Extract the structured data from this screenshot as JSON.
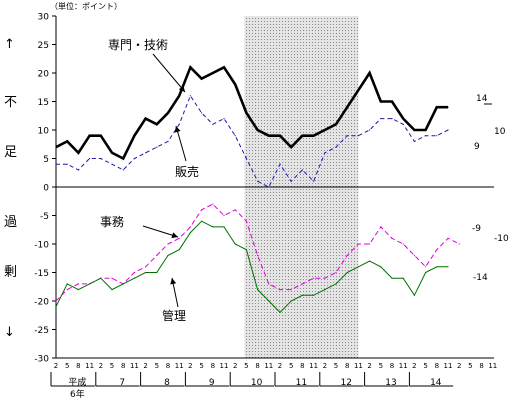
{
  "unit_label": "（単位：ポイント）",
  "side_labels": {
    "up_arrow": "↑",
    "shortage_1": "不",
    "shortage_2": "足",
    "surplus_1": "過",
    "surplus_2": "剰",
    "down_arrow": "↓"
  },
  "chart_data": {
    "type": "line",
    "title": "",
    "ylim": [
      -30,
      30
    ],
    "y_ticks": [
      "30",
      "25",
      "20",
      "15",
      "10",
      "5",
      "0",
      "-5",
      "-10",
      "-15",
      "-20",
      "-25",
      "-30"
    ],
    "x_month_labels": [
      "2",
      "5",
      "8",
      "11",
      "2",
      "5",
      "8",
      "11",
      "2",
      "5",
      "8",
      "11",
      "2",
      "5",
      "8",
      "11",
      "2",
      "5",
      "8",
      "11",
      "2",
      "5",
      "8",
      "11",
      "2",
      "5",
      "8",
      "11",
      "2",
      "5",
      "8",
      "11",
      "2",
      "5",
      "8",
      "11",
      "2",
      "5",
      "8",
      "11"
    ],
    "year_labels": [
      {
        "label": "平成",
        "sub": "6年"
      },
      {
        "label": "7"
      },
      {
        "label": "8"
      },
      {
        "label": "9"
      },
      {
        "label": "10"
      },
      {
        "label": "11"
      },
      {
        "label": "12"
      },
      {
        "label": "13"
      },
      {
        "label": "14"
      }
    ],
    "shaded_period": [
      17,
      27
    ],
    "series": [
      {
        "name": "専門・技術",
        "color": "#000000",
        "values": [
          7,
          8,
          6,
          9,
          9,
          6,
          5,
          9,
          12,
          11,
          13,
          16,
          21,
          19,
          20,
          21,
          18,
          13,
          10,
          9,
          9,
          7,
          9,
          9,
          10,
          11,
          14,
          17,
          20,
          15,
          15,
          12,
          10,
          10,
          14,
          14
        ],
        "end_label": "14"
      },
      {
        "name": "販売",
        "color": "#1a1aa8",
        "values": [
          4,
          4,
          3,
          5,
          5,
          4,
          3,
          5,
          6,
          7,
          8,
          11,
          16,
          13,
          11,
          12,
          9,
          5,
          1,
          0,
          4,
          1,
          3,
          1,
          6,
          7,
          9,
          9,
          10,
          12,
          12,
          11,
          8,
          9,
          9,
          10
        ],
        "end_label": "10",
        "extra_label": "9"
      },
      {
        "name": "事務",
        "color": "#e000e0",
        "values": [
          -20,
          -18,
          -17,
          -17,
          -16,
          -16,
          -17,
          -15,
          -14,
          -12,
          -10,
          -9,
          -7,
          -4,
          -3,
          -5,
          -4,
          -6,
          -12,
          -17,
          -18,
          -18,
          -17,
          -16,
          -16,
          -15,
          -12,
          -10,
          -10,
          -7,
          -9,
          -10,
          -12,
          -14,
          -11,
          -9,
          -10
        ],
        "end_label": "-10",
        "extra_label": "-9"
      },
      {
        "name": "管理",
        "color": "#007000",
        "values": [
          -21,
          -17,
          -18,
          -17,
          -16,
          -18,
          -17,
          -16,
          -15,
          -15,
          -12,
          -11,
          -8,
          -6,
          -7,
          -7,
          -10,
          -11,
          -18,
          -20,
          -22,
          -20,
          -19,
          -19,
          -18,
          -17,
          -15,
          -14,
          -13,
          -14,
          -16,
          -16,
          -19,
          -15,
          -14,
          -14
        ],
        "end_label": "-14"
      }
    ]
  }
}
